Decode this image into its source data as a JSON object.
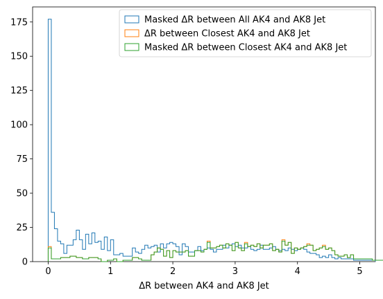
{
  "chart_data": {
    "type": "histogram-step",
    "title": "",
    "xlabel": "ΔR between AK4 and AK8 Jet",
    "ylabel": "",
    "xlim": [
      -0.25,
      5.25
    ],
    "ylim": [
      0,
      186
    ],
    "xticks": [
      0,
      1,
      2,
      3,
      4,
      5
    ],
    "yticks": [
      0,
      25,
      50,
      75,
      100,
      125,
      150,
      175
    ],
    "bin_width": 0.05,
    "bin_start": 0,
    "legend_position": "top-right",
    "grid": false,
    "series": [
      {
        "name": "Masked ΔR between All AK4 and AK8 Jet",
        "color": "#1f77b4",
        "values": [
          177,
          36,
          24,
          15,
          13,
          6,
          12,
          12,
          16,
          23,
          16,
          9,
          20,
          13,
          21,
          14,
          15,
          9,
          18,
          8,
          16,
          5,
          5,
          6,
          4,
          4,
          4,
          10,
          7,
          6,
          9,
          12,
          10,
          11,
          12,
          7,
          13,
          10,
          13,
          14,
          13,
          11,
          5,
          13,
          11,
          7,
          7,
          8,
          11,
          8,
          9,
          10,
          9,
          7,
          9,
          9,
          12,
          10,
          12,
          13,
          11,
          12,
          10,
          10,
          11,
          9,
          8,
          9,
          12,
          9,
          9,
          10,
          11,
          9,
          8,
          9,
          8,
          10,
          9,
          8,
          9,
          10,
          9,
          7,
          6,
          6,
          5,
          3,
          4,
          3,
          5,
          3,
          2,
          3,
          2,
          2,
          2,
          2,
          1,
          1,
          1,
          1,
          1,
          1,
          1
        ]
      },
      {
        "name": "ΔR between Closest AK4 and AK8 Jet",
        "color": "#ff7f0e",
        "values": [
          11,
          2,
          2,
          2,
          3,
          3,
          3,
          4,
          4,
          3,
          3,
          2,
          2,
          3,
          3,
          3,
          2,
          0,
          0,
          1,
          1,
          2,
          0,
          0,
          1,
          1,
          1,
          3,
          3,
          2,
          1,
          1,
          1,
          5,
          7,
          10,
          9,
          4,
          8,
          3,
          8,
          7,
          7,
          7,
          8,
          4,
          4,
          8,
          8,
          7,
          9,
          15,
          10,
          10,
          11,
          12,
          10,
          13,
          12,
          8,
          14,
          10,
          8,
          14,
          11,
          12,
          11,
          13,
          10,
          12,
          12,
          13,
          8,
          9,
          7,
          16,
          12,
          14,
          6,
          10,
          9,
          10,
          11,
          13,
          12,
          8,
          9,
          10,
          12,
          9,
          10,
          8,
          5,
          4,
          4,
          5,
          3,
          5,
          2,
          2,
          2,
          2,
          2,
          2,
          1,
          1,
          1,
          1,
          1,
          1,
          1,
          1,
          1,
          1,
          1,
          1,
          1,
          1,
          1,
          1,
          2,
          2,
          2,
          1,
          1,
          1,
          1,
          1,
          1,
          1,
          1
        ]
      },
      {
        "name": "Masked ΔR between Closest AK4 and AK8 Jet",
        "color": "#2ca02c",
        "values": [
          10,
          2,
          2,
          2,
          3,
          3,
          3,
          4,
          4,
          3,
          3,
          2,
          2,
          3,
          3,
          3,
          2,
          0,
          0,
          1,
          1,
          2,
          0,
          0,
          1,
          1,
          1,
          3,
          3,
          2,
          1,
          1,
          1,
          5,
          7,
          10,
          9,
          4,
          8,
          3,
          8,
          7,
          7,
          7,
          8,
          4,
          4,
          8,
          8,
          7,
          9,
          14,
          10,
          10,
          11,
          12,
          10,
          13,
          12,
          8,
          14,
          10,
          8,
          13,
          11,
          12,
          11,
          13,
          10,
          12,
          12,
          13,
          8,
          9,
          7,
          15,
          12,
          14,
          6,
          10,
          9,
          10,
          11,
          12,
          12,
          8,
          9,
          10,
          11,
          9,
          10,
          8,
          5,
          4,
          4,
          5,
          3,
          5,
          2,
          2,
          2,
          2,
          2,
          2,
          1,
          1,
          1,
          1,
          1,
          1,
          1,
          1,
          1,
          1,
          1,
          1,
          1,
          1,
          1,
          1,
          1,
          1,
          1,
          1,
          1,
          1,
          1,
          1,
          1,
          1,
          1
        ]
      }
    ]
  }
}
